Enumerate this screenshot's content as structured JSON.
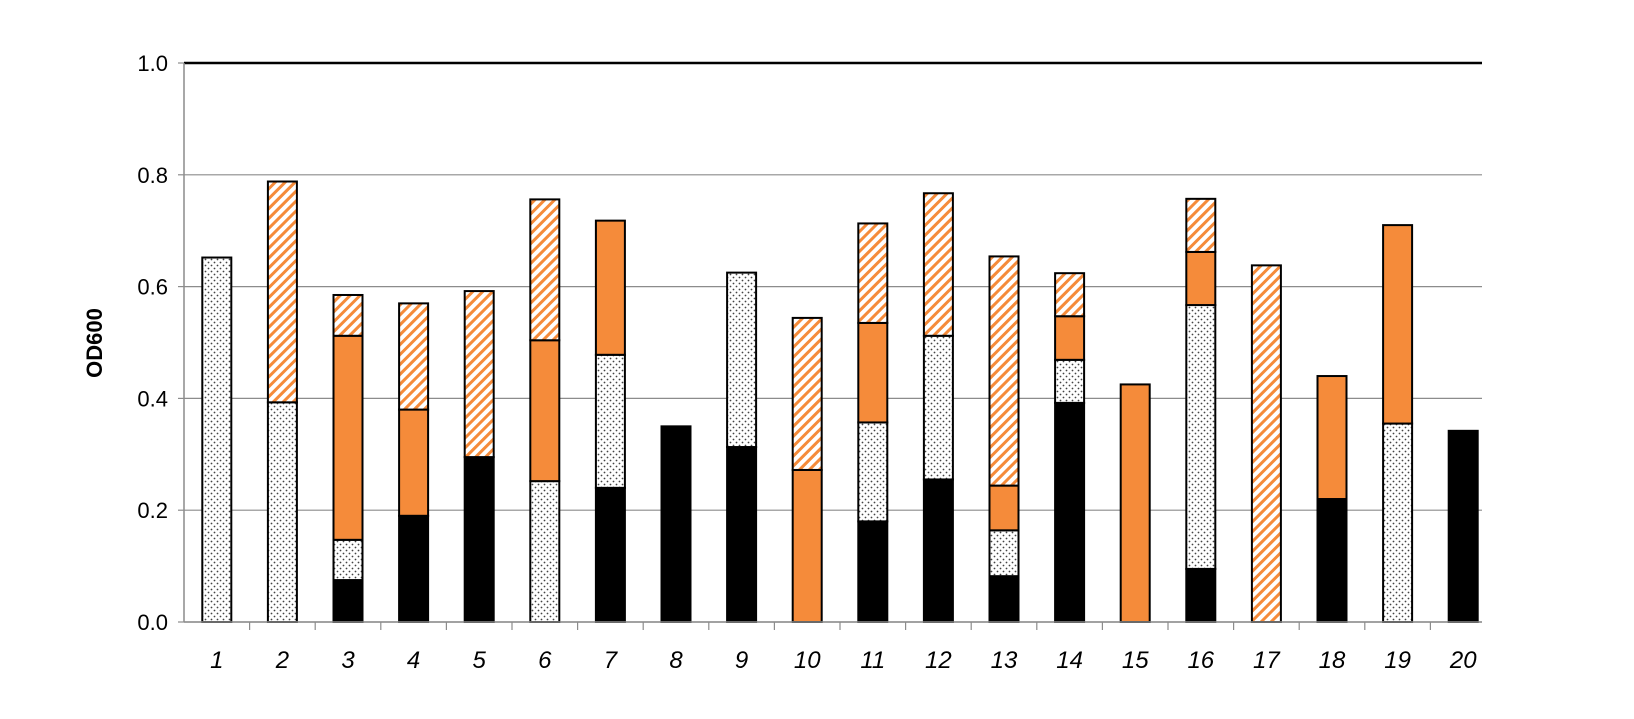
{
  "chart_data": {
    "type": "bar",
    "stacked": true,
    "title": "",
    "xlabel": "",
    "ylabel": "OD600",
    "ylim": [
      0,
      1.0
    ],
    "yticks": [
      "0.0",
      "0.2",
      "0.4",
      "0.6",
      "0.8",
      "1.0"
    ],
    "grid": true,
    "categories": [
      "1",
      "2",
      "3",
      "4",
      "5",
      "6",
      "7",
      "8",
      "9",
      "10",
      "11",
      "12",
      "13",
      "14",
      "15",
      "16",
      "17",
      "18",
      "19",
      "20"
    ],
    "series": [
      {
        "pattern": "solid",
        "color": "#000000",
        "values": [
          0,
          0,
          0.075,
          0.19,
          0.295,
          0,
          0.24,
          0.35,
          0.313,
          0,
          0.18,
          0.255,
          0.082,
          0.392,
          0,
          0.095,
          0,
          0.22,
          0,
          0.342
        ]
      },
      {
        "pattern": "dotted",
        "color": "#ffffff",
        "values": [
          0.652,
          0.393,
          0.072,
          0,
          0,
          0.252,
          0.238,
          0,
          0.312,
          0,
          0.177,
          0.257,
          0.082,
          0.077,
          0,
          0.472,
          0,
          0,
          0.355,
          0
        ]
      },
      {
        "pattern": "solid",
        "color": "#F58B3A",
        "values": [
          0,
          0,
          0.365,
          0.19,
          0,
          0.252,
          0.24,
          0,
          0,
          0.272,
          0.178,
          0,
          0.08,
          0.078,
          0.425,
          0.095,
          0,
          0.22,
          0.355,
          0
        ]
      },
      {
        "pattern": "hatched",
        "color": "#F58B3A",
        "values": [
          0,
          0.395,
          0.073,
          0.19,
          0.297,
          0.252,
          0,
          0,
          0,
          0.272,
          0.178,
          0.255,
          0.41,
          0.077,
          0,
          0.095,
          0.638,
          0,
          0,
          0
        ]
      }
    ]
  }
}
